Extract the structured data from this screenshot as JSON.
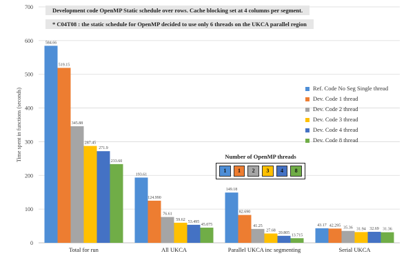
{
  "notes": {
    "line1": "Development code OpenMP Static schedule over rows. Cache blocking set at 4 columns per segment.",
    "line2": "* C04T08 : the static schedule for OpenMP decided to use only 6 threads on the UKCA parallel region"
  },
  "thread_legend": {
    "title": "Number of OpenMP threads",
    "chips": [
      "1",
      "1",
      "2",
      "3",
      "4",
      "8"
    ]
  },
  "colors": [
    "#4e8ed6",
    "#ed7d31",
    "#a5a5a5",
    "#ffc000",
    "#4472c4",
    "#70ad47"
  ],
  "chart_data": {
    "type": "bar",
    "ylabel": "Time spent in functions (seconds)",
    "ylim": [
      0,
      700
    ],
    "yticks": [
      0,
      100,
      200,
      300,
      400,
      500,
      600,
      700
    ],
    "categories": [
      "Total for run",
      "All UKCA",
      "Parallel UKCA inc segmenting",
      "Serial UKCA"
    ],
    "legend_position": "right",
    "series": [
      {
        "name": "Ref. Code No Seg Single thread",
        "values": [
          584.66,
          193.61,
          149.18,
          43.17
        ],
        "labels": [
          "584.66",
          "193.61",
          "149.18",
          "43.17"
        ]
      },
      {
        "name": "Dev. Code 1 thread",
        "values": [
          519.15,
          124.99,
          82.69,
          42.29
        ],
        "labels": [
          "519.15",
          "124.990",
          "82.690",
          "42.295"
        ]
      },
      {
        "name": "Dev. Code 2 thread",
        "values": [
          345.88,
          76.61,
          41.25,
          35.36
        ],
        "labels": [
          "345.88",
          "76.61",
          "41.25",
          "35.36"
        ]
      },
      {
        "name": "Dev. Code 3 thread",
        "values": [
          287.45,
          59.62,
          27.68,
          31.94
        ],
        "labels": [
          "287.45",
          "59.62",
          "27.68",
          "31.94"
        ]
      },
      {
        "name": "Dev. Code 4 thread",
        "values": [
          271.9,
          53.495,
          20.805,
          32.69
        ],
        "labels": [
          "271.9",
          "53.495",
          "20.805",
          "32.69"
        ]
      },
      {
        "name": "Dev. Code 8 thread",
        "values": [
          233.6,
          45.075,
          13.715,
          31.36
        ],
        "labels": [
          "233.60",
          "45.075",
          "13.715",
          "31.36"
        ]
      }
    ]
  }
}
